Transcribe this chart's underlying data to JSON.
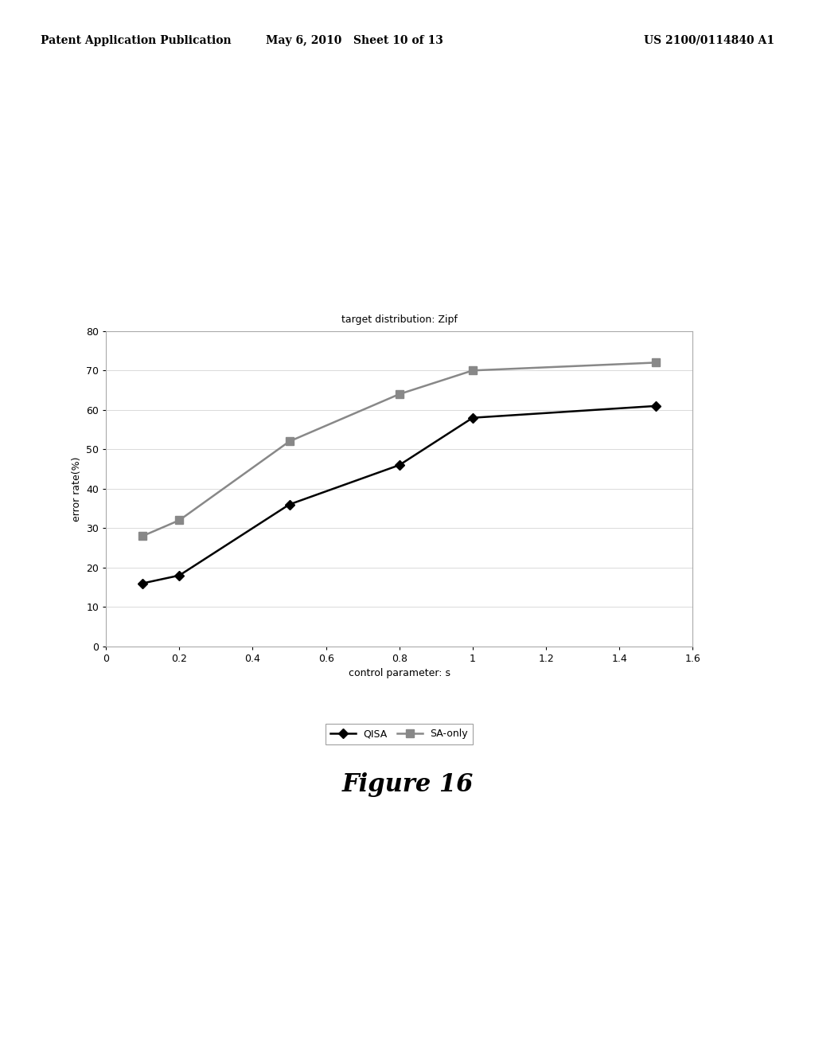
{
  "title": "target distribution: Zipf",
  "xlabel": "control parameter: s",
  "ylabel": "error rate(%)",
  "xlim": [
    0,
    1.6
  ],
  "ylim": [
    0,
    80
  ],
  "xticks": [
    0,
    0.2,
    0.4,
    0.6,
    0.8,
    1.0,
    1.2,
    1.4,
    1.6
  ],
  "yticks": [
    0,
    10,
    20,
    30,
    40,
    50,
    60,
    70,
    80
  ],
  "qisa_x": [
    0.1,
    0.2,
    0.5,
    0.8,
    1.0,
    1.5
  ],
  "qisa_y": [
    16,
    18,
    36,
    46,
    58,
    61
  ],
  "sa_x": [
    0.1,
    0.2,
    0.5,
    0.8,
    1.0,
    1.5
  ],
  "sa_y": [
    28,
    32,
    52,
    64,
    70,
    72
  ],
  "qisa_color": "#000000",
  "sa_color": "#888888",
  "background_color": "#ffffff",
  "header_left": "Patent Application Publication",
  "header_center": "May 6, 2010   Sheet 10 of 13",
  "header_right": "US 2100/0114840 A1",
  "figure_label": "Figure 16",
  "legend_qisa": "QISA",
  "legend_sa": "SA-only"
}
